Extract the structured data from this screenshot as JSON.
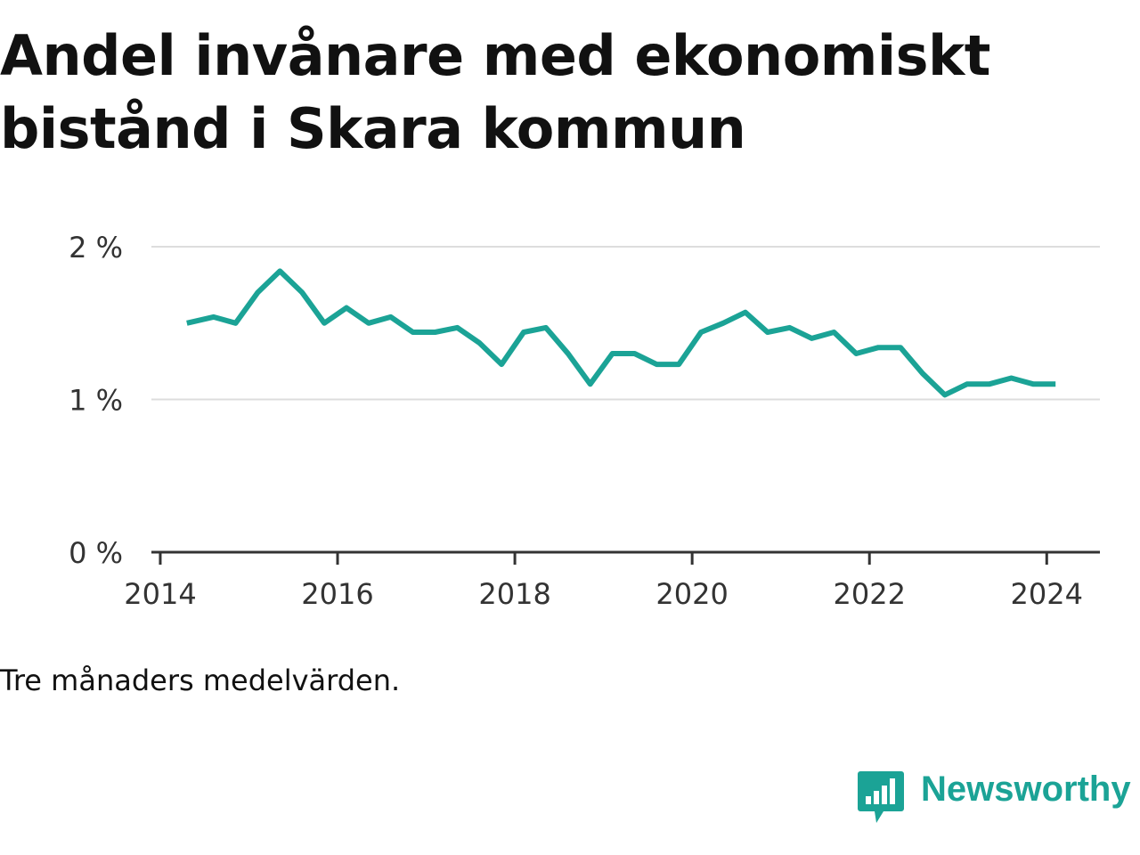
{
  "title": "Andel invånare med ekonomiskt bistånd i Skara kommun",
  "note": "Tre månaders medelvärden.",
  "brand": {
    "name": "Newsworthy",
    "icon": "bar-chart-speech-bubble-icon",
    "color": "#1ba396"
  },
  "colors": {
    "line": "#1ba396",
    "grid": "#dddddd",
    "axis": "#333333"
  },
  "chart_data": {
    "type": "line",
    "title": "Andel invånare med ekonomiskt bistånd i Skara kommun",
    "xlabel": "",
    "ylabel": "",
    "ylim": [
      0,
      2
    ],
    "xlim": [
      2013.9,
      2024.6
    ],
    "grid": true,
    "yticks": [
      {
        "value": 0,
        "label": "0 %"
      },
      {
        "value": 1,
        "label": "1 %"
      },
      {
        "value": 2,
        "label": "2 %"
      }
    ],
    "xticks": [
      {
        "value": 2014,
        "label": "2014"
      },
      {
        "value": 2016,
        "label": "2016"
      },
      {
        "value": 2018,
        "label": "2018"
      },
      {
        "value": 2020,
        "label": "2020"
      },
      {
        "value": 2022,
        "label": "2022"
      },
      {
        "value": 2024,
        "label": "2024"
      }
    ],
    "series": [
      {
        "x": [
          2014.3,
          2014.6,
          2014.85,
          2015.1,
          2015.35,
          2015.6,
          2015.85,
          2016.1,
          2016.35,
          2016.6,
          2016.85,
          2017.1,
          2017.35,
          2017.6,
          2017.85,
          2018.1,
          2018.35,
          2018.6,
          2018.85,
          2019.1,
          2019.35,
          2019.6,
          2019.85,
          2020.1,
          2020.35,
          2020.6,
          2020.85,
          2021.1,
          2021.35,
          2021.6,
          2021.85,
          2022.1,
          2022.35,
          2022.6,
          2022.85,
          2023.1,
          2023.35,
          2023.6,
          2023.85,
          2024.1
        ],
        "values": [
          1.5,
          1.54,
          1.5,
          1.7,
          1.84,
          1.7,
          1.5,
          1.6,
          1.5,
          1.54,
          1.44,
          1.44,
          1.47,
          1.37,
          1.23,
          1.44,
          1.47,
          1.3,
          1.1,
          1.3,
          1.3,
          1.23,
          1.23,
          1.44,
          1.5,
          1.57,
          1.44,
          1.47,
          1.4,
          1.44,
          1.3,
          1.34,
          1.34,
          1.17,
          1.03,
          1.1,
          1.1,
          1.14,
          1.1,
          1.1
        ]
      }
    ]
  }
}
